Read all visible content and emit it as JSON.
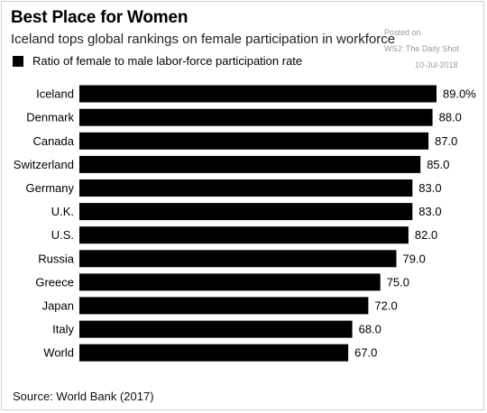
{
  "title": "Best Place for Women",
  "subtitle": "Iceland tops global rankings on female participation in workforce",
  "posted": {
    "label": "Posted on",
    "source": "WSJ: The Daily Shot",
    "date": "10-Jul-2018"
  },
  "source_note": "Source: World Bank (2017)",
  "colors": {
    "bar": "#000000"
  },
  "chart_data": {
    "type": "bar",
    "orientation": "horizontal",
    "title": "Best Place for Women",
    "legend": "Ratio of female to male labor-force participation rate",
    "categories": [
      "Iceland",
      "Denmark",
      "Canada",
      "Switzerland",
      "Germany",
      "U.K.",
      "U.S.",
      "Russia",
      "Greece",
      "Japan",
      "Italy",
      "World"
    ],
    "values": [
      89.0,
      88.0,
      87.0,
      85.0,
      83.0,
      83.0,
      82.0,
      79.0,
      75.0,
      72.0,
      68.0,
      67.0
    ],
    "value_labels": [
      "89.0%",
      "88.0",
      "87.0",
      "85.0",
      "83.0",
      "83.0",
      "82.0",
      "79.0",
      "75.0",
      "72.0",
      "68.0",
      "67.0"
    ],
    "xlim": [
      0,
      89
    ],
    "grid": false,
    "legend_position": "top-left"
  }
}
